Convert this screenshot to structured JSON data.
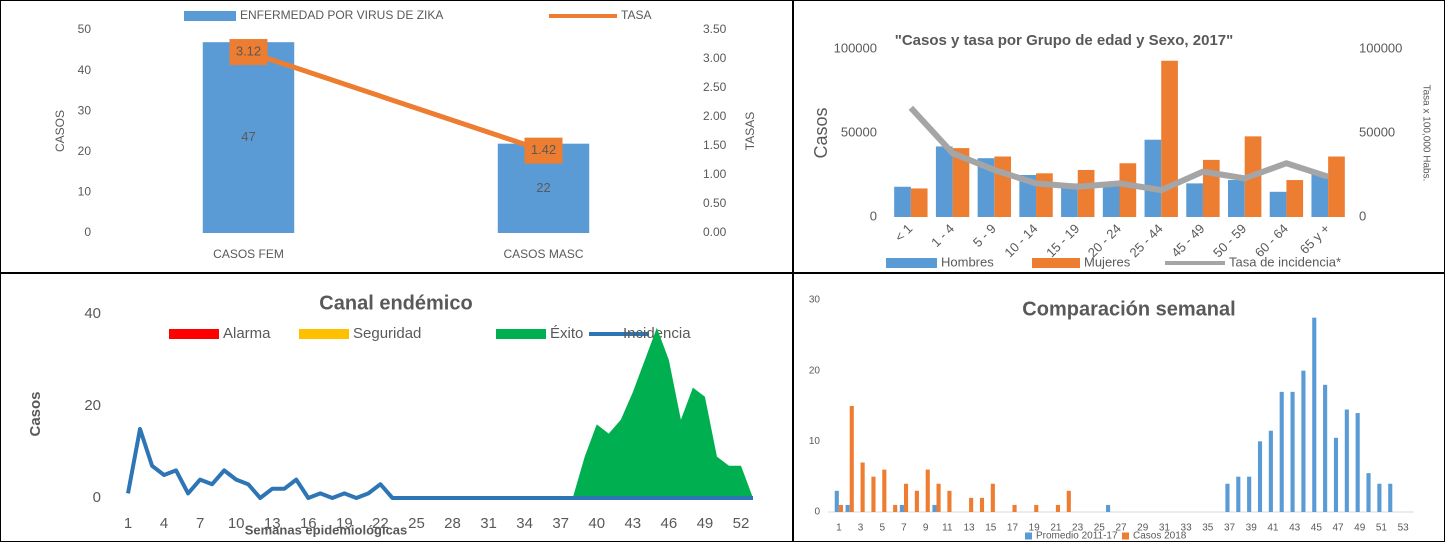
{
  "chart_data": [
    {
      "type": "bar",
      "categories": [
        "CASOS FEM",
        "CASOS MASC"
      ],
      "series": [
        {
          "name": "ENFERMEDAD POR VIRUS DE ZIKA",
          "color": "#5b9bd5",
          "values": [
            47,
            22
          ]
        },
        {
          "name": "TASA",
          "color": "#ed7d31",
          "type": "line",
          "axis": "y2",
          "values": [
            3.12,
            1.42
          ]
        }
      ],
      "ylabel": "CASOS",
      "y2label": "TASAS",
      "ylim": [
        0,
        50
      ],
      "yticks": [
        0,
        10,
        20,
        30,
        40,
        50
      ],
      "y2lim": [
        0,
        3.5
      ],
      "y2ticks": [
        {
          "value": 0,
          "label": "0.00"
        },
        {
          "value": 0.5,
          "label": "0.50"
        },
        {
          "value": 1,
          "label": "1.00"
        },
        {
          "value": 1.5,
          "label": "1.50"
        },
        {
          "value": 2,
          "label": "2.00"
        },
        {
          "value": 2.5,
          "label": "2.50"
        },
        {
          "value": 3,
          "label": "3.00"
        },
        {
          "value": 3.5,
          "label": "3.50"
        }
      ],
      "data_labels": true,
      "grid": false
    },
    {
      "type": "bar",
      "title": "\"Casos y tasa por Grupo de edad y Sexo, 2017\"",
      "categories": [
        "< 1",
        "1 - 4",
        "5 - 9",
        "10 - 14",
        "15 - 19",
        "20 - 24",
        "25 - 44",
        "45 - 49",
        "50 - 59",
        "60 - 64",
        "65 y +"
      ],
      "series": [
        {
          "name": "Hombres",
          "color": "#5b9bd5",
          "values": [
            18000,
            42000,
            35000,
            25000,
            20000,
            20000,
            46000,
            20000,
            22000,
            15000,
            26000
          ]
        },
        {
          "name": "Mujeres",
          "color": "#ed7d31",
          "values": [
            17000,
            41000,
            36000,
            26000,
            28000,
            32000,
            93000,
            34000,
            48000,
            22000,
            36000
          ]
        },
        {
          "name": "Tasa de incidencia*",
          "color": "#a5a5a5",
          "type": "line",
          "axis": "y2",
          "values": [
            65000,
            38000,
            28000,
            20000,
            18000,
            20000,
            16000,
            27000,
            23000,
            32000,
            24000
          ]
        }
      ],
      "ylabel": "Casos",
      "y2label": "Tasa x 100,000 Habs.",
      "ylim": [
        0,
        100000
      ],
      "yticks": [
        0,
        50000,
        100000
      ],
      "y2lim": [
        0,
        100000
      ],
      "y2ticks": [
        0,
        50000,
        100000
      ],
      "grid": false
    },
    {
      "type": "area",
      "title": "Canal endémico",
      "x": [
        1,
        2,
        3,
        4,
        5,
        6,
        7,
        8,
        9,
        10,
        11,
        12,
        13,
        14,
        15,
        16,
        17,
        18,
        19,
        20,
        21,
        22,
        23,
        24,
        25,
        26,
        27,
        28,
        29,
        30,
        31,
        32,
        33,
        34,
        35,
        36,
        37,
        38,
        39,
        40,
        41,
        42,
        43,
        44,
        45,
        46,
        47,
        48,
        49,
        50,
        51,
        52,
        53
      ],
      "series": [
        {
          "name": "Alarma",
          "color": "#ff0000",
          "values": [
            0,
            0,
            0,
            0,
            0,
            0,
            0,
            0,
            0,
            0,
            0,
            0,
            0,
            0,
            0,
            0,
            0,
            0,
            0,
            0,
            0,
            0,
            0,
            0,
            0,
            0,
            0,
            0,
            0,
            0,
            0,
            0,
            0,
            0,
            0,
            0,
            0,
            0,
            0,
            0,
            0,
            0,
            0,
            0,
            0,
            0,
            0,
            0,
            0,
            0,
            0,
            0,
            0
          ]
        },
        {
          "name": "Seguridad",
          "color": "#ffc000",
          "values": [
            0,
            0,
            0,
            0,
            0,
            0,
            0,
            0,
            0,
            0,
            0,
            0,
            0,
            0,
            0,
            0,
            0,
            0,
            0,
            0,
            0,
            0,
            0,
            0,
            0,
            0,
            0,
            0,
            0,
            0,
            0,
            0,
            0,
            0,
            0,
            0,
            0,
            0,
            0,
            0,
            0,
            0,
            0,
            0,
            0,
            0,
            0,
            0,
            0,
            0,
            0,
            0,
            0
          ]
        },
        {
          "name": "Éxito",
          "color": "#00b050",
          "values": [
            0,
            0,
            0,
            0,
            0,
            0,
            0,
            0,
            0,
            0,
            0,
            0,
            0,
            0,
            0,
            0,
            0,
            0,
            0,
            0,
            0,
            0,
            0,
            0,
            0,
            0,
            0,
            0,
            0,
            0,
            0,
            0,
            0,
            0,
            0,
            0,
            0,
            0,
            9,
            16,
            14,
            17,
            23,
            30,
            37,
            30,
            17,
            24,
            22,
            9,
            7,
            7,
            0
          ]
        },
        {
          "name": "Incidencia",
          "color": "#2e75b6",
          "type": "line",
          "values": [
            1,
            15,
            7,
            5,
            6,
            1,
            4,
            3,
            6,
            4,
            3,
            0,
            2,
            2,
            4,
            0,
            1,
            0,
            1,
            0,
            1,
            3,
            0,
            0,
            0,
            0,
            0,
            0,
            0,
            0,
            0,
            0,
            0,
            0,
            0,
            0,
            0,
            0,
            0,
            0,
            0,
            0,
            0,
            0,
            0,
            0,
            0,
            0,
            0,
            0,
            0,
            0,
            0
          ]
        }
      ],
      "xlabel": "Semanas epidemiológicas",
      "ylabel": "Casos",
      "xlim": [
        1,
        53
      ],
      "xticks": [
        1,
        4,
        7,
        10,
        13,
        16,
        19,
        22,
        25,
        28,
        31,
        34,
        37,
        40,
        43,
        46,
        49,
        52
      ],
      "ylim": [
        0,
        40
      ],
      "yticks": [
        0,
        20,
        40
      ],
      "grid": false
    },
    {
      "type": "bar",
      "title": "Comparación semanal",
      "x": [
        1,
        2,
        3,
        4,
        5,
        6,
        7,
        8,
        9,
        10,
        11,
        12,
        13,
        14,
        15,
        16,
        17,
        18,
        19,
        20,
        21,
        22,
        23,
        24,
        25,
        26,
        27,
        28,
        29,
        30,
        31,
        32,
        33,
        34,
        35,
        36,
        37,
        38,
        39,
        40,
        41,
        42,
        43,
        44,
        45,
        46,
        47,
        48,
        49,
        50,
        51,
        52,
        53
      ],
      "series": [
        {
          "name": "Promedio 2011-17",
          "color": "#5b9bd5",
          "values": [
            3,
            1,
            0,
            0,
            0,
            0,
            1,
            0,
            0,
            1,
            0,
            0,
            0,
            0,
            0,
            0,
            0,
            0,
            0,
            0,
            0,
            0,
            0,
            0,
            0,
            1,
            0,
            0,
            0,
            0,
            0,
            0,
            0,
            0,
            0,
            0,
            4,
            5,
            5,
            10,
            11.5,
            17,
            17,
            20,
            27.5,
            18,
            10.5,
            14.5,
            14,
            5.5,
            4,
            4,
            0
          ]
        },
        {
          "name": "Casos 2018",
          "color": "#ed7d31",
          "values": [
            1,
            15,
            7,
            5,
            6,
            1,
            4,
            3,
            6,
            4,
            3,
            0,
            2,
            2,
            4,
            0,
            1,
            0,
            1,
            0,
            1,
            3,
            0,
            0,
            0,
            0,
            0,
            0,
            0,
            0,
            0,
            0,
            0,
            0,
            0,
            0,
            0,
            0,
            0,
            0,
            0,
            0,
            0,
            0,
            0,
            0,
            0,
            0,
            0,
            0,
            0,
            0,
            0
          ]
        }
      ],
      "xlim": [
        0,
        54
      ],
      "xticks": [
        1,
        3,
        5,
        7,
        9,
        11,
        13,
        15,
        17,
        19,
        21,
        23,
        25,
        27,
        29,
        31,
        33,
        35,
        37,
        39,
        41,
        43,
        45,
        47,
        49,
        51,
        53
      ],
      "ylim": [
        0,
        30
      ],
      "yticks": [
        0,
        10,
        20,
        30
      ],
      "grid": false
    }
  ]
}
